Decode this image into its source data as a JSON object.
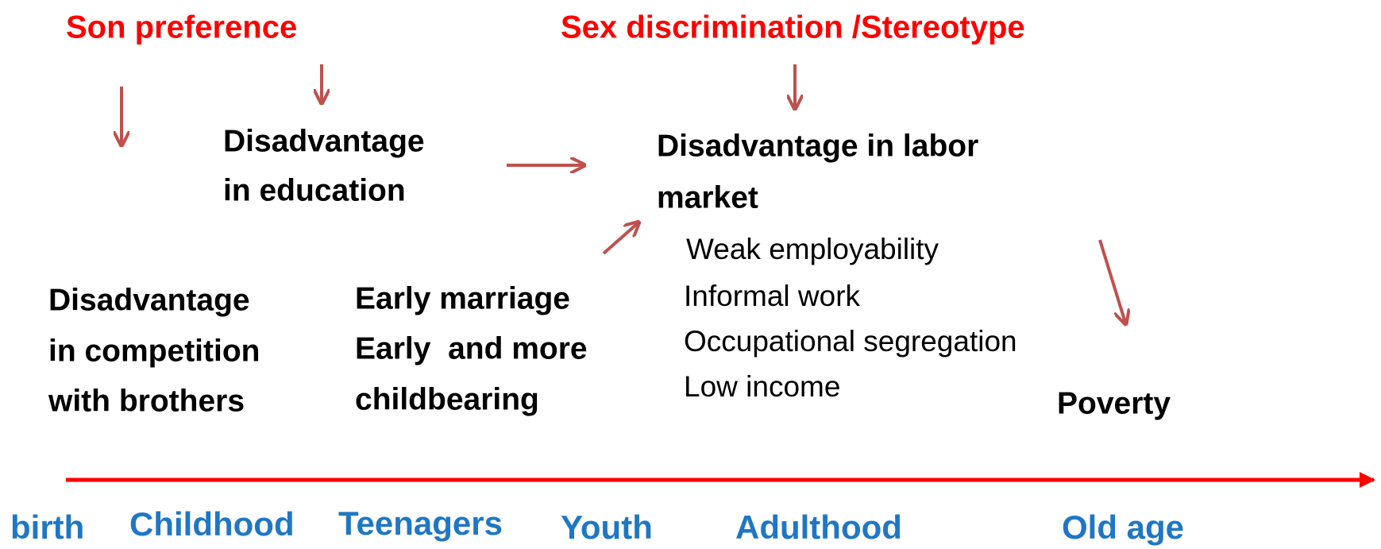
{
  "causes": {
    "son_preference": "Son preference",
    "sex_discrimination": "Sex discrimination /Stereotype"
  },
  "outcomes": {
    "education": [
      "Disadvantage",
      "in education"
    ],
    "labor_market": [
      "Disadvantage in labor",
      "market"
    ],
    "labor_details": [
      "Weak employability",
      "Informal work",
      "Occupational segregation",
      "Low income"
    ],
    "competition": [
      "Disadvantage",
      "in competition",
      "with brothers"
    ],
    "marriage": [
      "Early marriage",
      "Early  and more",
      "childbearing"
    ],
    "poverty": "Poverty"
  },
  "timeline": [
    "birth",
    "Childhood",
    "Teenagers",
    "Youth",
    "Adulthood",
    "Old age"
  ]
}
